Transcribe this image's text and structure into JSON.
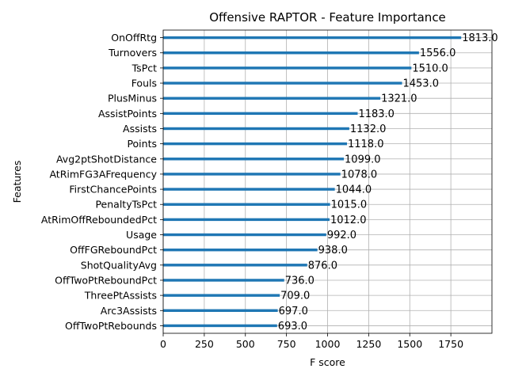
{
  "chart_data": {
    "type": "bar",
    "orientation": "horizontal",
    "title": "Offensive RAPTOR - Feature Importance",
    "xlabel": "F score",
    "ylabel": "Features",
    "xlim": [
      0,
      2000
    ],
    "xticks": [
      0,
      250,
      500,
      750,
      1000,
      1250,
      1500,
      1750
    ],
    "xtick_labels": [
      "0",
      "250",
      "500",
      "750",
      "1000",
      "1250",
      "1500",
      "1750"
    ],
    "grid": true,
    "bar_color": "#1f77b4",
    "categories": [
      "OnOffRtg",
      "Turnovers",
      "TsPct",
      "Fouls",
      "PlusMinus",
      "AssistPoints",
      "Assists",
      "Points",
      "Avg2ptShotDistance",
      "AtRimFG3AFrequency",
      "FirstChancePoints",
      "PenaltyTsPct",
      "AtRimOffReboundedPct",
      "Usage",
      "OffFGReboundPct",
      "ShotQualityAvg",
      "OffTwoPtReboundPct",
      "ThreePtAssists",
      "Arc3Assists",
      "OffTwoPtRebounds"
    ],
    "values": [
      1813,
      1556,
      1510,
      1453,
      1321,
      1183,
      1132,
      1118,
      1099,
      1078,
      1044,
      1015,
      1012,
      992,
      938,
      876,
      736,
      709,
      697,
      693
    ],
    "value_labels": [
      "1813.0",
      "1556.0",
      "1510.0",
      "1453.0",
      "1321.0",
      "1183.0",
      "1132.0",
      "1118.0",
      "1099.0",
      "1078.0",
      "1044.0",
      "1015.0",
      "1012.0",
      "992.0",
      "938.0",
      "876.0",
      "736.0",
      "709.0",
      "697.0",
      "693.0"
    ]
  }
}
